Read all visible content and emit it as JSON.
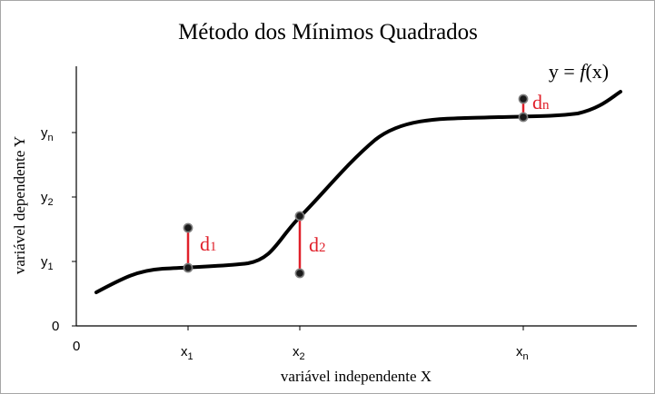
{
  "title": "Método dos Mínimos Quadrados",
  "function_label": {
    "prefix": "y = ",
    "f": "f",
    "suffix": "(x)"
  },
  "x_axis": {
    "label": "variável independente X",
    "origin": "0",
    "ticks": [
      {
        "base": "x",
        "sub": "1"
      },
      {
        "base": "x",
        "sub": "2"
      },
      {
        "base": "x",
        "sub": "n"
      }
    ]
  },
  "y_axis": {
    "label": "variável dependente Y",
    "origin": "0",
    "ticks": [
      {
        "base": "y",
        "sub": "1"
      },
      {
        "base": "y",
        "sub": "2"
      },
      {
        "base": "y",
        "sub": "n"
      }
    ]
  },
  "deviations": [
    {
      "base": "d",
      "sub": "1"
    },
    {
      "base": "d",
      "sub": "2"
    },
    {
      "base": "d",
      "sub": "n"
    }
  ],
  "colors": {
    "curve": "#000000",
    "deviation": "#e0202a",
    "point_fill": "#1a1a1a",
    "point_stroke": "#808080",
    "axis": "#000000"
  }
}
